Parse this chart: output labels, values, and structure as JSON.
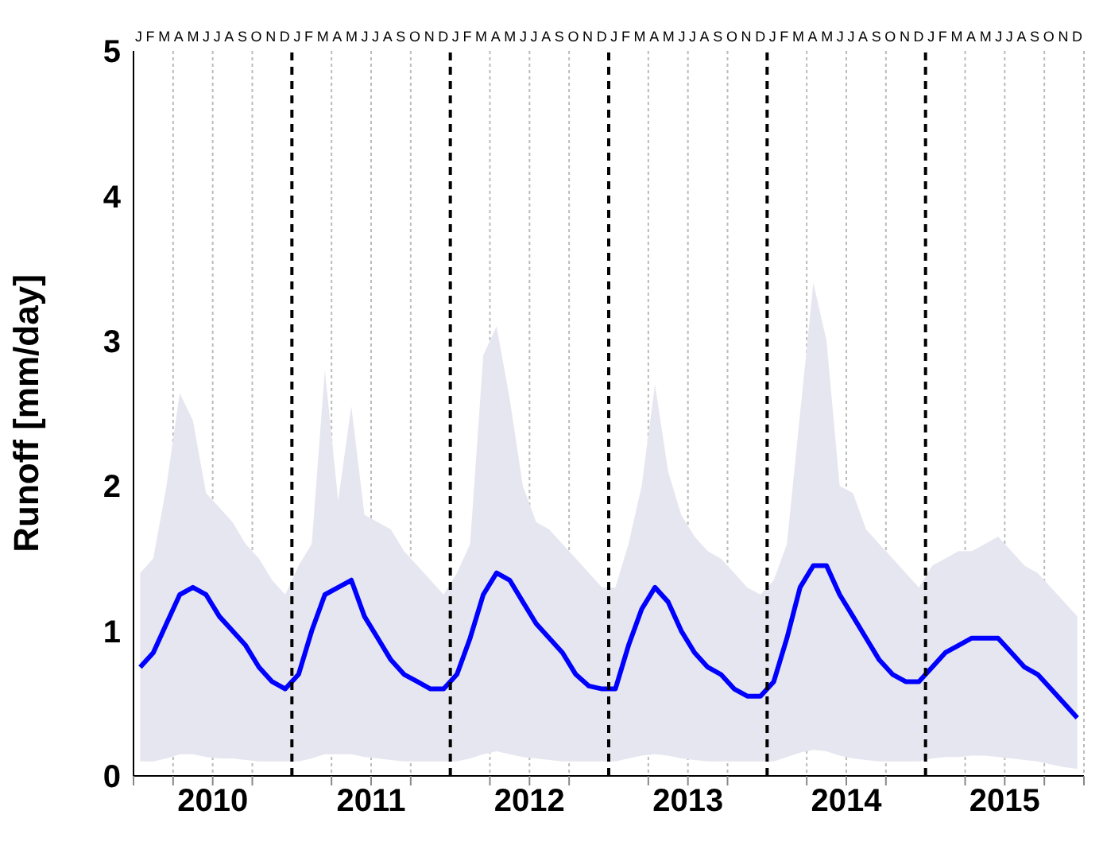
{
  "chart_data": {
    "type": "line",
    "ylabel": "Runoff [mm/day]",
    "x": [
      2010.042,
      2010.125,
      2010.208,
      2010.292,
      2010.375,
      2010.458,
      2010.542,
      2010.625,
      2010.708,
      2010.792,
      2010.875,
      2010.958,
      2011.042,
      2011.125,
      2011.208,
      2011.292,
      2011.375,
      2011.458,
      2011.542,
      2011.625,
      2011.708,
      2011.792,
      2011.875,
      2011.958,
      2012.042,
      2012.125,
      2012.208,
      2012.292,
      2012.375,
      2012.458,
      2012.542,
      2012.625,
      2012.708,
      2012.792,
      2012.875,
      2012.958,
      2013.042,
      2013.125,
      2013.208,
      2013.292,
      2013.375,
      2013.458,
      2013.542,
      2013.625,
      2013.708,
      2013.792,
      2013.875,
      2013.958,
      2014.042,
      2014.125,
      2014.208,
      2014.292,
      2014.375,
      2014.458,
      2014.542,
      2014.625,
      2014.708,
      2014.792,
      2014.875,
      2014.958,
      2015.042,
      2015.125,
      2015.208,
      2015.292,
      2015.375,
      2015.458,
      2015.542,
      2015.625,
      2015.708,
      2015.792,
      2015.875,
      2015.958
    ],
    "series": [
      {
        "color": "#0000ff",
        "values": [
          0.75,
          0.85,
          1.05,
          1.25,
          1.3,
          1.25,
          1.1,
          1.0,
          0.9,
          0.75,
          0.65,
          0.6,
          0.7,
          1.0,
          1.25,
          1.3,
          1.35,
          1.1,
          0.95,
          0.8,
          0.7,
          0.65,
          0.6,
          0.6,
          0.7,
          0.95,
          1.25,
          1.4,
          1.35,
          1.2,
          1.05,
          0.95,
          0.85,
          0.7,
          0.62,
          0.6,
          0.6,
          0.9,
          1.15,
          1.3,
          1.2,
          1.0,
          0.85,
          0.75,
          0.7,
          0.6,
          0.55,
          0.55,
          0.65,
          0.95,
          1.3,
          1.45,
          1.45,
          1.25,
          1.1,
          0.95,
          0.8,
          0.7,
          0.65,
          0.65,
          0.75,
          0.85,
          0.9,
          0.95,
          0.95,
          0.95,
          0.85,
          0.75,
          0.7,
          0.6,
          0.5,
          0.4
        ],
        "lower": [
          0.1,
          0.1,
          0.12,
          0.15,
          0.15,
          0.13,
          0.12,
          0.12,
          0.11,
          0.1,
          0.1,
          0.1,
          0.1,
          0.12,
          0.15,
          0.15,
          0.15,
          0.13,
          0.12,
          0.11,
          0.1,
          0.1,
          0.1,
          0.1,
          0.1,
          0.12,
          0.15,
          0.17,
          0.15,
          0.13,
          0.12,
          0.11,
          0.1,
          0.1,
          0.1,
          0.1,
          0.1,
          0.12,
          0.14,
          0.15,
          0.14,
          0.12,
          0.11,
          0.1,
          0.1,
          0.1,
          0.1,
          0.1,
          0.1,
          0.13,
          0.16,
          0.18,
          0.17,
          0.14,
          0.12,
          0.11,
          0.1,
          0.1,
          0.1,
          0.1,
          0.12,
          0.13,
          0.13,
          0.14,
          0.14,
          0.13,
          0.12,
          0.11,
          0.1,
          0.08,
          0.06,
          0.05
        ],
        "upper": [
          1.4,
          1.5,
          2.0,
          2.64,
          2.45,
          1.95,
          1.85,
          1.75,
          1.6,
          1.5,
          1.35,
          1.25,
          1.45,
          1.6,
          2.8,
          1.9,
          2.55,
          1.8,
          1.75,
          1.7,
          1.55,
          1.45,
          1.35,
          1.25,
          1.4,
          1.6,
          2.9,
          3.1,
          2.6,
          2.0,
          1.75,
          1.7,
          1.6,
          1.5,
          1.4,
          1.3,
          1.3,
          1.6,
          2.0,
          2.7,
          2.1,
          1.8,
          1.65,
          1.55,
          1.5,
          1.4,
          1.3,
          1.25,
          1.35,
          1.6,
          2.5,
          3.4,
          3.0,
          2.0,
          1.95,
          1.7,
          1.6,
          1.5,
          1.4,
          1.3,
          1.45,
          1.5,
          1.55,
          1.55,
          1.6,
          1.65,
          1.55,
          1.45,
          1.4,
          1.3,
          1.2,
          1.1
        ]
      }
    ],
    "xlim": [
      2010,
      2016
    ],
    "xticks": [
      {
        "value": 2010,
        "label": null
      },
      {
        "value": 2010.25,
        "label": null
      },
      {
        "value": 2010.5,
        "label": "2010"
      },
      {
        "value": 2010.75,
        "label": null
      },
      {
        "value": 2011.25,
        "label": null
      },
      {
        "value": 2011.5,
        "label": "2011"
      },
      {
        "value": 2011.75,
        "label": null
      },
      {
        "value": 2012.25,
        "label": null
      },
      {
        "value": 2012.5,
        "label": "2012"
      },
      {
        "value": 2012.75,
        "label": null
      },
      {
        "value": 2013.25,
        "label": null
      },
      {
        "value": 2013.5,
        "label": "2013"
      },
      {
        "value": 2013.75,
        "label": null
      },
      {
        "value": 2014.25,
        "label": null
      },
      {
        "value": 2014.5,
        "label": "2014"
      },
      {
        "value": 2014.75,
        "label": null
      },
      {
        "value": 2015.25,
        "label": null
      },
      {
        "value": 2015.5,
        "label": "2015"
      },
      {
        "value": 2015.75,
        "label": null
      },
      {
        "value": 2016,
        "label": null
      }
    ],
    "annotations": [
      "JFMAMJJASONDJFMAMJJASONDJFMAMJJASONDJFMAMJJASONDJFMAMJJASONDJFMAMJJASOND"
    ],
    "ylim": [
      0,
      5
    ],
    "yticks": [
      0,
      1,
      2,
      3,
      4,
      5
    ],
    "grid": "x",
    "ref_lines": [
      {
        "axis": "x",
        "value": 2011,
        "line_style": "dashed",
        "color": "#000000"
      },
      {
        "axis": "x",
        "value": 2012,
        "line_style": "dashed",
        "color": "#000000"
      },
      {
        "axis": "x",
        "value": 2013,
        "line_style": "dashed",
        "color": "#000000"
      },
      {
        "axis": "x",
        "value": 2014,
        "line_style": "dashed",
        "color": "#000000"
      },
      {
        "axis": "x",
        "value": 2015,
        "line_style": "dashed",
        "color": "#000000"
      }
    ],
    "legend": false,
    "marker": "none",
    "line_style": "solid"
  }
}
